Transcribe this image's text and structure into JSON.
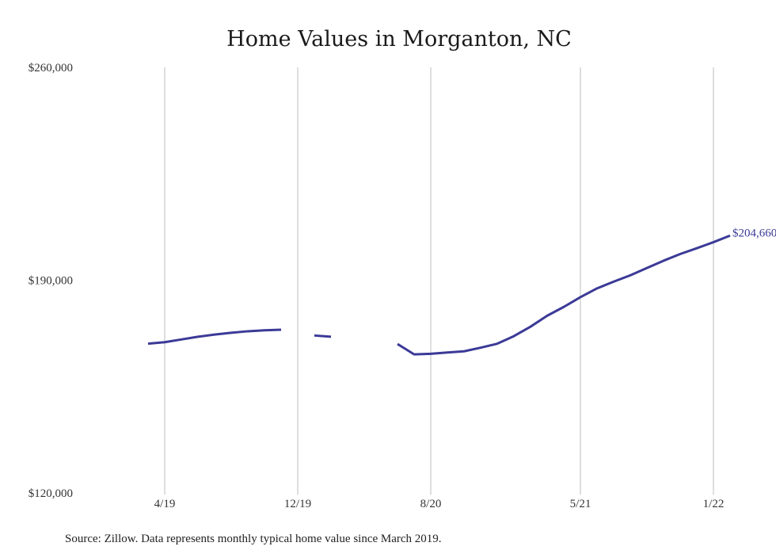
{
  "chart_data": {
    "type": "line",
    "title": "Home Values in Morganton, NC",
    "xlabel": "",
    "ylabel": "",
    "ylim": [
      120000,
      260000
    ],
    "y_ticks": [
      "$120,000",
      "$190,000",
      "$260,000"
    ],
    "y_tick_values": [
      120000,
      190000,
      260000
    ],
    "x_ticks": [
      "4/19",
      "12/19",
      "8/20",
      "5/21",
      "1/22"
    ],
    "x_tick_dates": [
      "2019-04",
      "2019-12",
      "2020-08",
      "2021-05",
      "2022-01"
    ],
    "grid": "vertical",
    "series_color": "#3b3a97",
    "series": [
      {
        "name": "",
        "points": [
          {
            "x": "2019-03",
            "y": 169100
          },
          {
            "x": "2019-04",
            "y": 169600
          },
          {
            "x": "2019-05",
            "y": 170500
          },
          {
            "x": "2019-06",
            "y": 171400
          },
          {
            "x": "2019-07",
            "y": 172100
          },
          {
            "x": "2019-08",
            "y": 172700
          },
          {
            "x": "2019-09",
            "y": 173200
          },
          {
            "x": "2019-10",
            "y": 173500
          },
          {
            "x": "2019-11",
            "y": 173700
          },
          {
            "x": "2019-12",
            "y": null
          },
          {
            "x": "2020-01",
            "y": 171800
          },
          {
            "x": "2020-02",
            "y": 171400
          },
          {
            "x": "2020-03",
            "y": null
          },
          {
            "x": "2020-04",
            "y": null
          },
          {
            "x": "2020-05",
            "y": null
          },
          {
            "x": "2020-06",
            "y": 169000
          },
          {
            "x": "2020-07",
            "y": 165600
          },
          {
            "x": "2020-08",
            "y": 165800
          },
          {
            "x": "2020-09",
            "y": 166200
          },
          {
            "x": "2020-10",
            "y": 166600
          },
          {
            "x": "2020-11",
            "y": 167800
          },
          {
            "x": "2020-12",
            "y": 169100
          },
          {
            "x": "2021-01",
            "y": 171600
          },
          {
            "x": "2021-02",
            "y": 174700
          },
          {
            "x": "2021-03",
            "y": 178300
          },
          {
            "x": "2021-04",
            "y": 181200
          },
          {
            "x": "2021-05",
            "y": 184400
          },
          {
            "x": "2021-06",
            "y": 187300
          },
          {
            "x": "2021-07",
            "y": 189500
          },
          {
            "x": "2021-08",
            "y": 191600
          },
          {
            "x": "2021-09",
            "y": 194000
          },
          {
            "x": "2021-10",
            "y": 196400
          },
          {
            "x": "2021-11",
            "y": 198600
          },
          {
            "x": "2021-12",
            "y": 200500
          },
          {
            "x": "2022-01",
            "y": 202500
          },
          {
            "x": "2022-02",
            "y": 204660
          }
        ]
      }
    ],
    "end_label": "$204,660",
    "source": "Source: Zillow. Data represents monthly typical home value since March 2019."
  }
}
